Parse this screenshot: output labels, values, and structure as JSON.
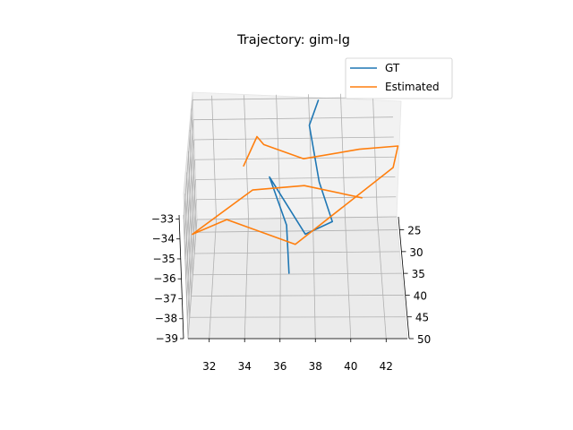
{
  "chart_data": {
    "type": "line",
    "projection": "3d",
    "title": "Trajectory: gim-lg",
    "xlabel": "",
    "ylabel": "",
    "zlabel": "",
    "xlim": [
      30.8,
      43.2
    ],
    "ylim": [
      22,
      50
    ],
    "zlim": [
      -39,
      -32.8
    ],
    "x_ticks": [
      "32",
      "34",
      "36",
      "38",
      "40",
      "42"
    ],
    "y_ticks": [
      "25",
      "30",
      "35",
      "40",
      "45",
      "50"
    ],
    "z_ticks": [
      "−33",
      "−34",
      "−35",
      "−36",
      "−37",
      "−38",
      "−39"
    ],
    "grid": true,
    "legend_position": "top-right",
    "series": [
      {
        "name": "GT",
        "color": "#1f77b4",
        "points": [
          [
            38.6,
            22.5,
            -33.0
          ],
          [
            38.0,
            25.5,
            -33.6
          ],
          [
            38.5,
            34.0,
            -34.6
          ],
          [
            39.2,
            40.0,
            -35.3
          ],
          [
            37.6,
            41.5,
            -35.6
          ],
          [
            35.5,
            30.0,
            -35.2
          ],
          [
            36.5,
            38.0,
            -35.9
          ],
          [
            36.6,
            45.0,
            -36.8
          ]
        ]
      },
      {
        "name": "Estimated",
        "color": "#ff7f0e",
        "points": [
          [
            34.0,
            32.0,
            -34.2
          ],
          [
            34.8,
            28.0,
            -33.6
          ],
          [
            35.2,
            28.0,
            -34.0
          ],
          [
            37.6,
            30.0,
            -34.3
          ],
          [
            41.0,
            27.0,
            -34.5
          ],
          [
            43.4,
            25.0,
            -34.8
          ],
          [
            43.0,
            29.0,
            -35.0
          ],
          [
            37.0,
            42.0,
            -36.0
          ],
          [
            33.0,
            38.0,
            -35.6
          ],
          [
            31.0,
            40.0,
            -35.9
          ],
          [
            34.5,
            33.0,
            -35.2
          ],
          [
            37.6,
            33.0,
            -35.0
          ],
          [
            41.0,
            35.0,
            -35.2
          ]
        ]
      }
    ]
  }
}
